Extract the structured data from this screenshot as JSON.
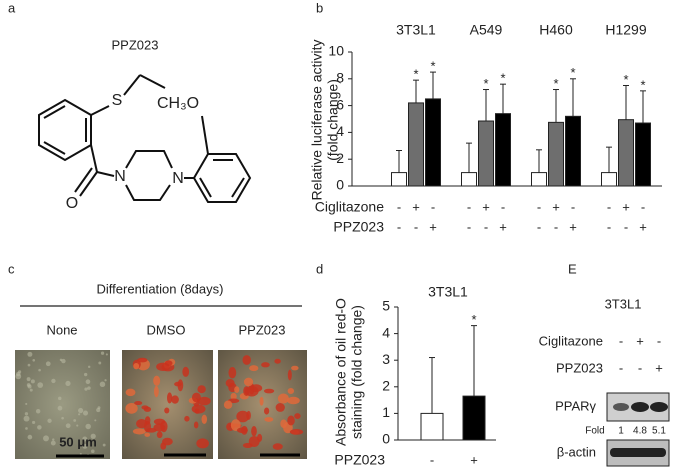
{
  "panel_a": {
    "label": "a",
    "title": "PPZ023",
    "atoms": [
      "S",
      "CH₃O",
      "O",
      "N",
      "N"
    ]
  },
  "panel_c": {
    "label": "c",
    "heading": "Differentiation (8days)",
    "images": [
      "None",
      "DMSO",
      "PPZ023"
    ],
    "scale_bar": "50 μm"
  },
  "panel_e": {
    "label": "E",
    "title": "3T3L1",
    "treatments": [
      {
        "name": "Ciglitazone",
        "signs": [
          "-",
          "+",
          "-"
        ]
      },
      {
        "name": "PPZ023",
        "signs": [
          "-",
          "-",
          "+"
        ]
      }
    ],
    "bands": [
      "PPARγ",
      "β-actin"
    ],
    "fold_label": "Fold",
    "fold": [
      1,
      4.8,
      5.1
    ]
  },
  "chart_data": [
    {
      "type": "bar",
      "panel_label": "b",
      "ylabel": [
        "Relative luciferase activity",
        "(fold change)"
      ],
      "categories": [
        "3T3L1",
        "A549",
        "H460",
        "H1299"
      ],
      "series": [
        {
          "color": "#ffffff",
          "values": [
            1,
            1,
            1,
            1
          ],
          "errors": [
            1.65,
            2.2,
            1.7,
            1.9
          ]
        },
        {
          "color": "#6e6e6e",
          "values": [
            6.2,
            4.85,
            4.75,
            4.95
          ],
          "errors": [
            1.7,
            2.35,
            2.45,
            2.55
          ],
          "annotations": [
            "*",
            "*",
            "*",
            "*"
          ]
        },
        {
          "color": "#000000",
          "values": [
            6.5,
            5.4,
            5.2,
            4.7
          ],
          "errors": [
            2.0,
            2.2,
            2.8,
            2.4
          ],
          "annotations": [
            "*",
            "*",
            "*",
            "*"
          ]
        }
      ],
      "treatments": [
        {
          "name": "Ciglitazone",
          "signs": [
            "-",
            "+",
            "-",
            "-",
            "+",
            "-",
            "-",
            "+",
            "-",
            "-",
            "+",
            "-"
          ]
        },
        {
          "name": "PPZ023",
          "signs": [
            "-",
            "-",
            "+",
            "-",
            "-",
            "+",
            "-",
            "-",
            "+",
            "-",
            "-",
            "+"
          ]
        }
      ],
      "ylim": [
        0,
        10
      ],
      "yticks": [
        0,
        2,
        4,
        6,
        8,
        10
      ]
    },
    {
      "type": "bar",
      "panel_label": "d",
      "title": "3T3L1",
      "ylabel": [
        "Absorbance of oil red-O",
        "staining (fold change)"
      ],
      "categories": [
        "-",
        "+"
      ],
      "category_axis_label": "PPZ023",
      "values": [
        1,
        1.65
      ],
      "errors": [
        2.1,
        2.65
      ],
      "colors": [
        "#ffffff",
        "#000000"
      ],
      "annotations": [
        null,
        "*"
      ],
      "ylim": [
        0,
        5
      ],
      "yticks": [
        0,
        1,
        2,
        3,
        4,
        5
      ]
    }
  ]
}
